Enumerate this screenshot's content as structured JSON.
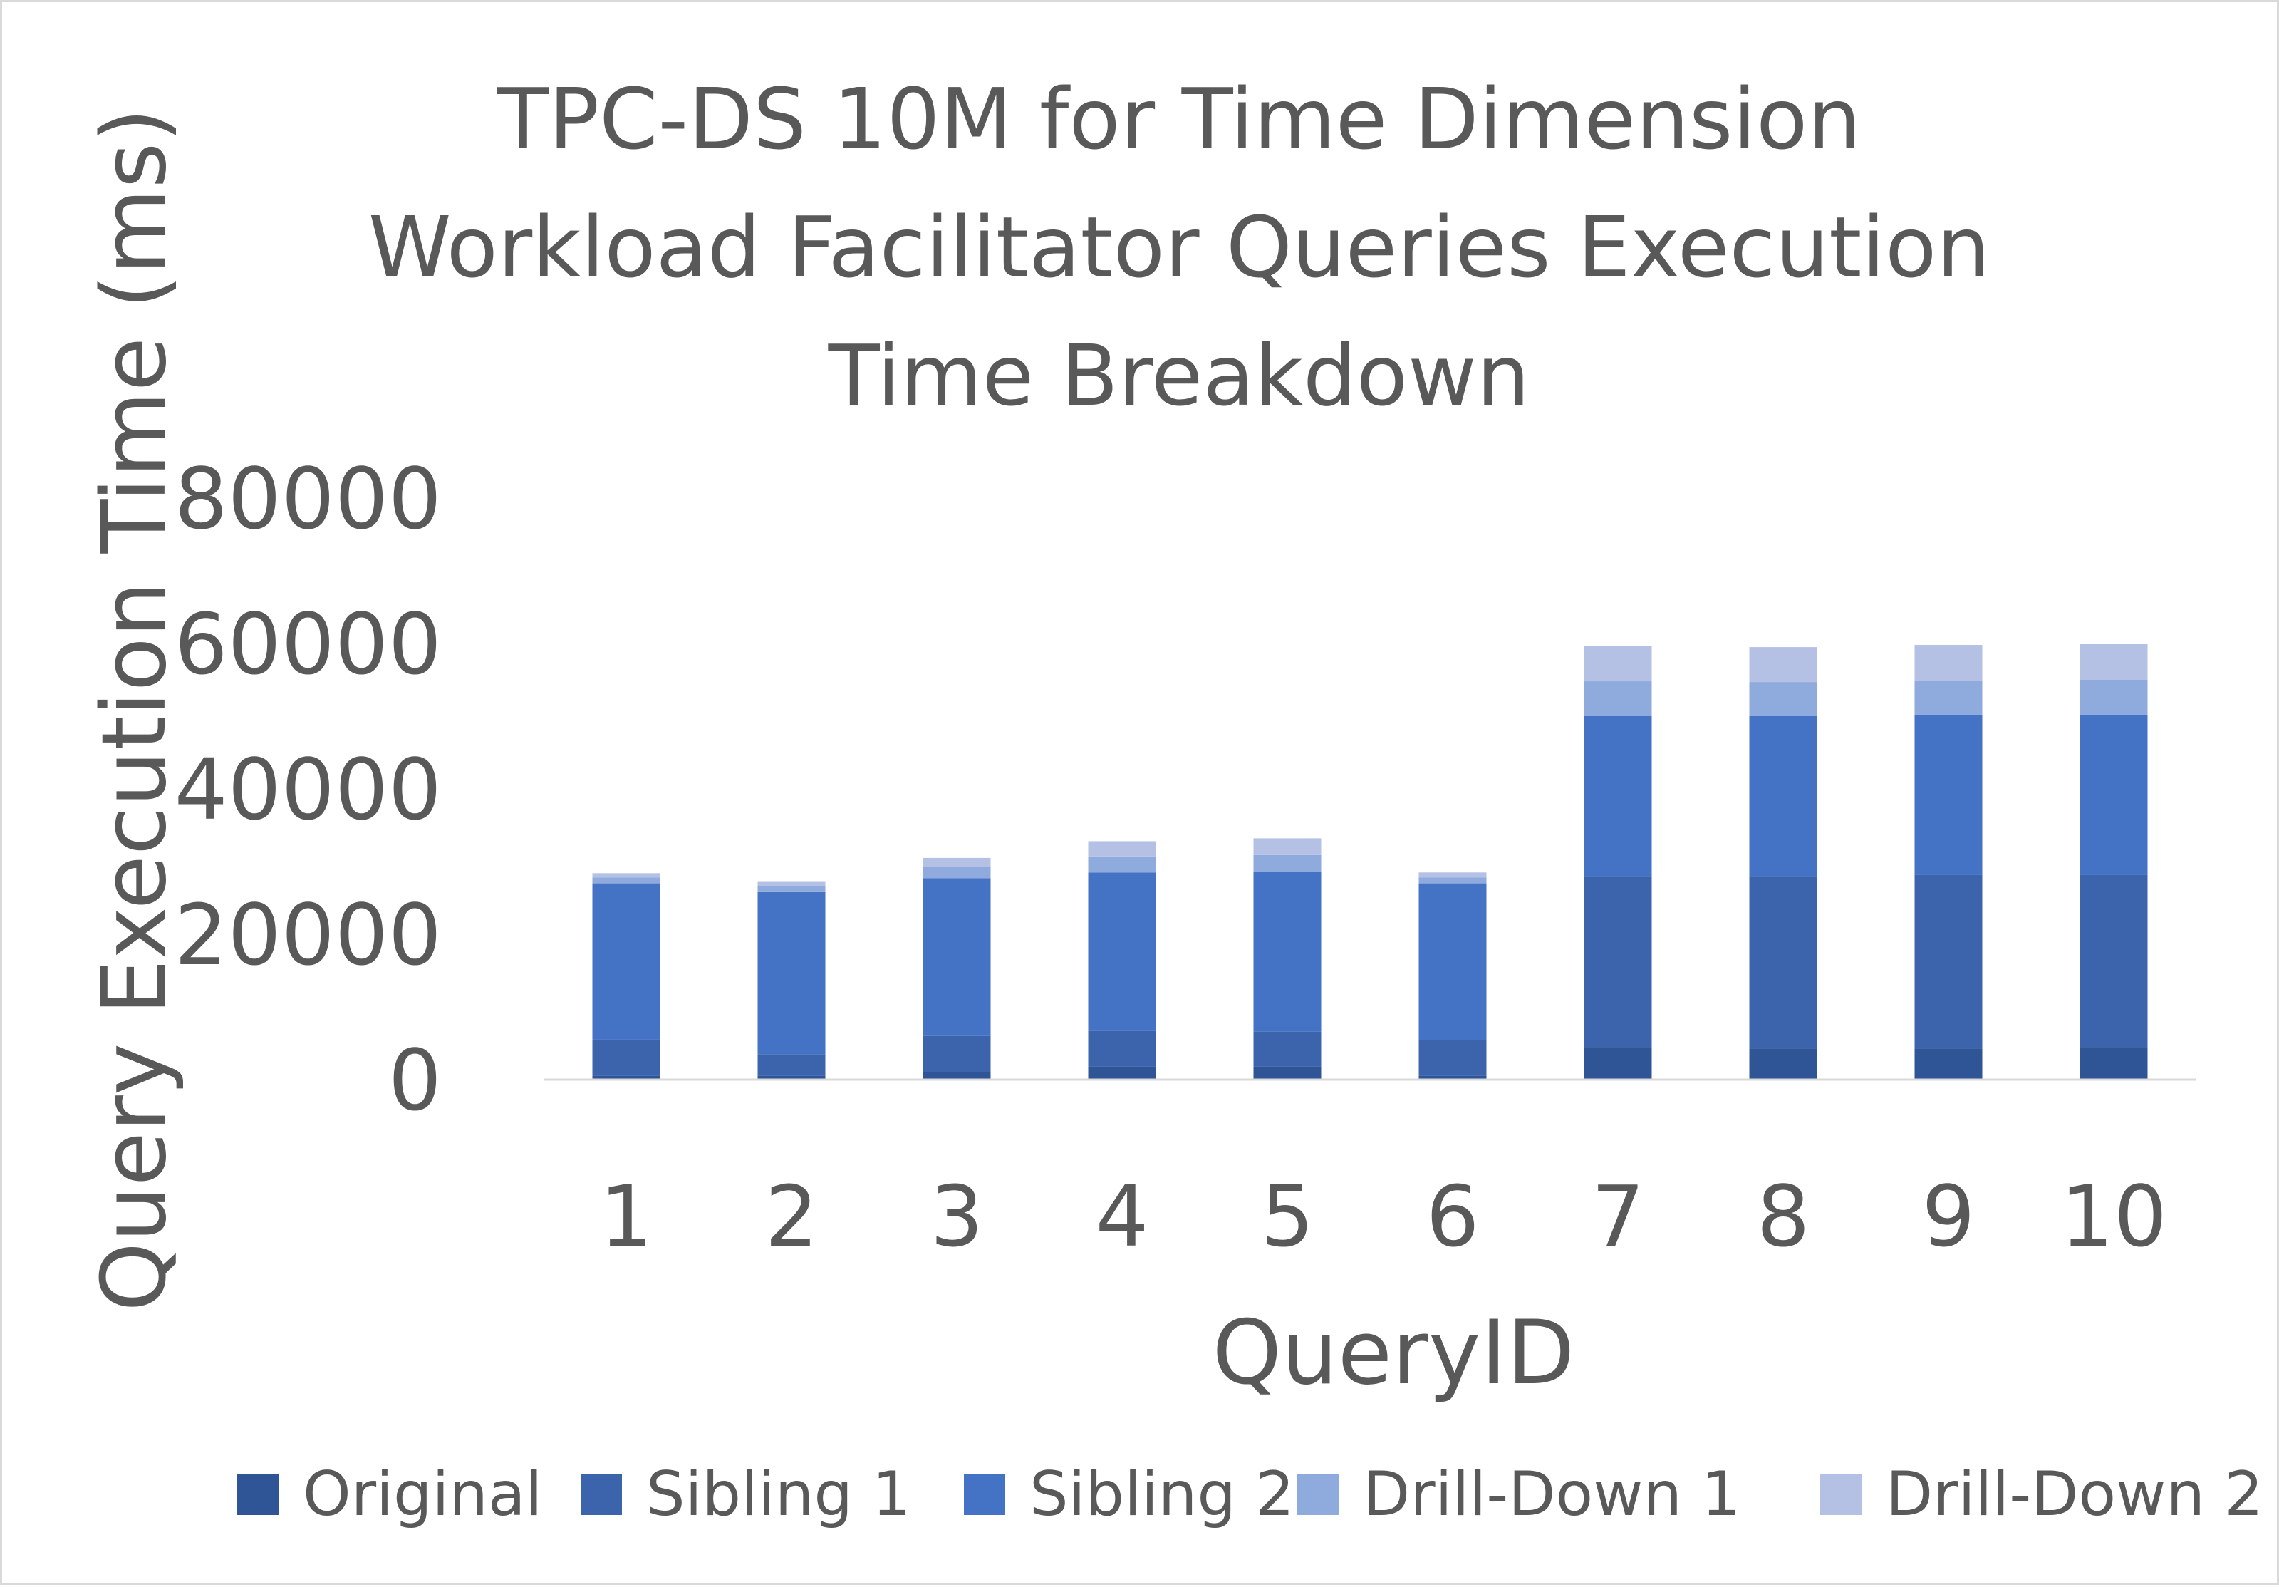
{
  "chart_data": {
    "type": "bar",
    "stacked": true,
    "title_lines": [
      "TPC-DS 10M for Time Dimension",
      "Workload Facilitator Queries Execution",
      "Time Breakdown"
    ],
    "xlabel": "QueryID",
    "ylabel": "Query Execution Time (ms)",
    "ylim": [
      0,
      80000
    ],
    "yticks": [
      0,
      20000,
      40000,
      60000,
      80000
    ],
    "ytick_labels": [
      "0",
      "20000",
      "40000",
      "60000",
      "80000"
    ],
    "categories": [
      "1",
      "2",
      "3",
      "4",
      "5",
      "6",
      "7",
      "8",
      "9",
      "10"
    ],
    "grid": false,
    "legend_position": "bottom",
    "series": [
      {
        "name": "Original",
        "color": "#2f5597",
        "values": [
          500,
          500,
          1000,
          1800,
          1800,
          500,
          4500,
          4300,
          4300,
          4500
        ]
      },
      {
        "name": "Sibling 1",
        "color": "#3b64ad",
        "values": [
          5000,
          3000,
          5000,
          4900,
          4800,
          4900,
          23500,
          23700,
          23900,
          23700
        ]
      },
      {
        "name": "Sibling 2",
        "color": "#4472c4",
        "values": [
          21500,
          22300,
          21700,
          21800,
          22000,
          21600,
          22000,
          22000,
          22000,
          22000
        ]
      },
      {
        "name": "Drill-Down 1",
        "color": "#8faadc",
        "values": [
          800,
          800,
          1600,
          2200,
          2300,
          800,
          4800,
          4700,
          4700,
          4800
        ]
      },
      {
        "name": "Drill-Down 2",
        "color": "#b4c1e4",
        "values": [
          600,
          700,
          1200,
          2100,
          2300,
          700,
          4900,
          4800,
          4900,
          4900
        ]
      }
    ]
  }
}
